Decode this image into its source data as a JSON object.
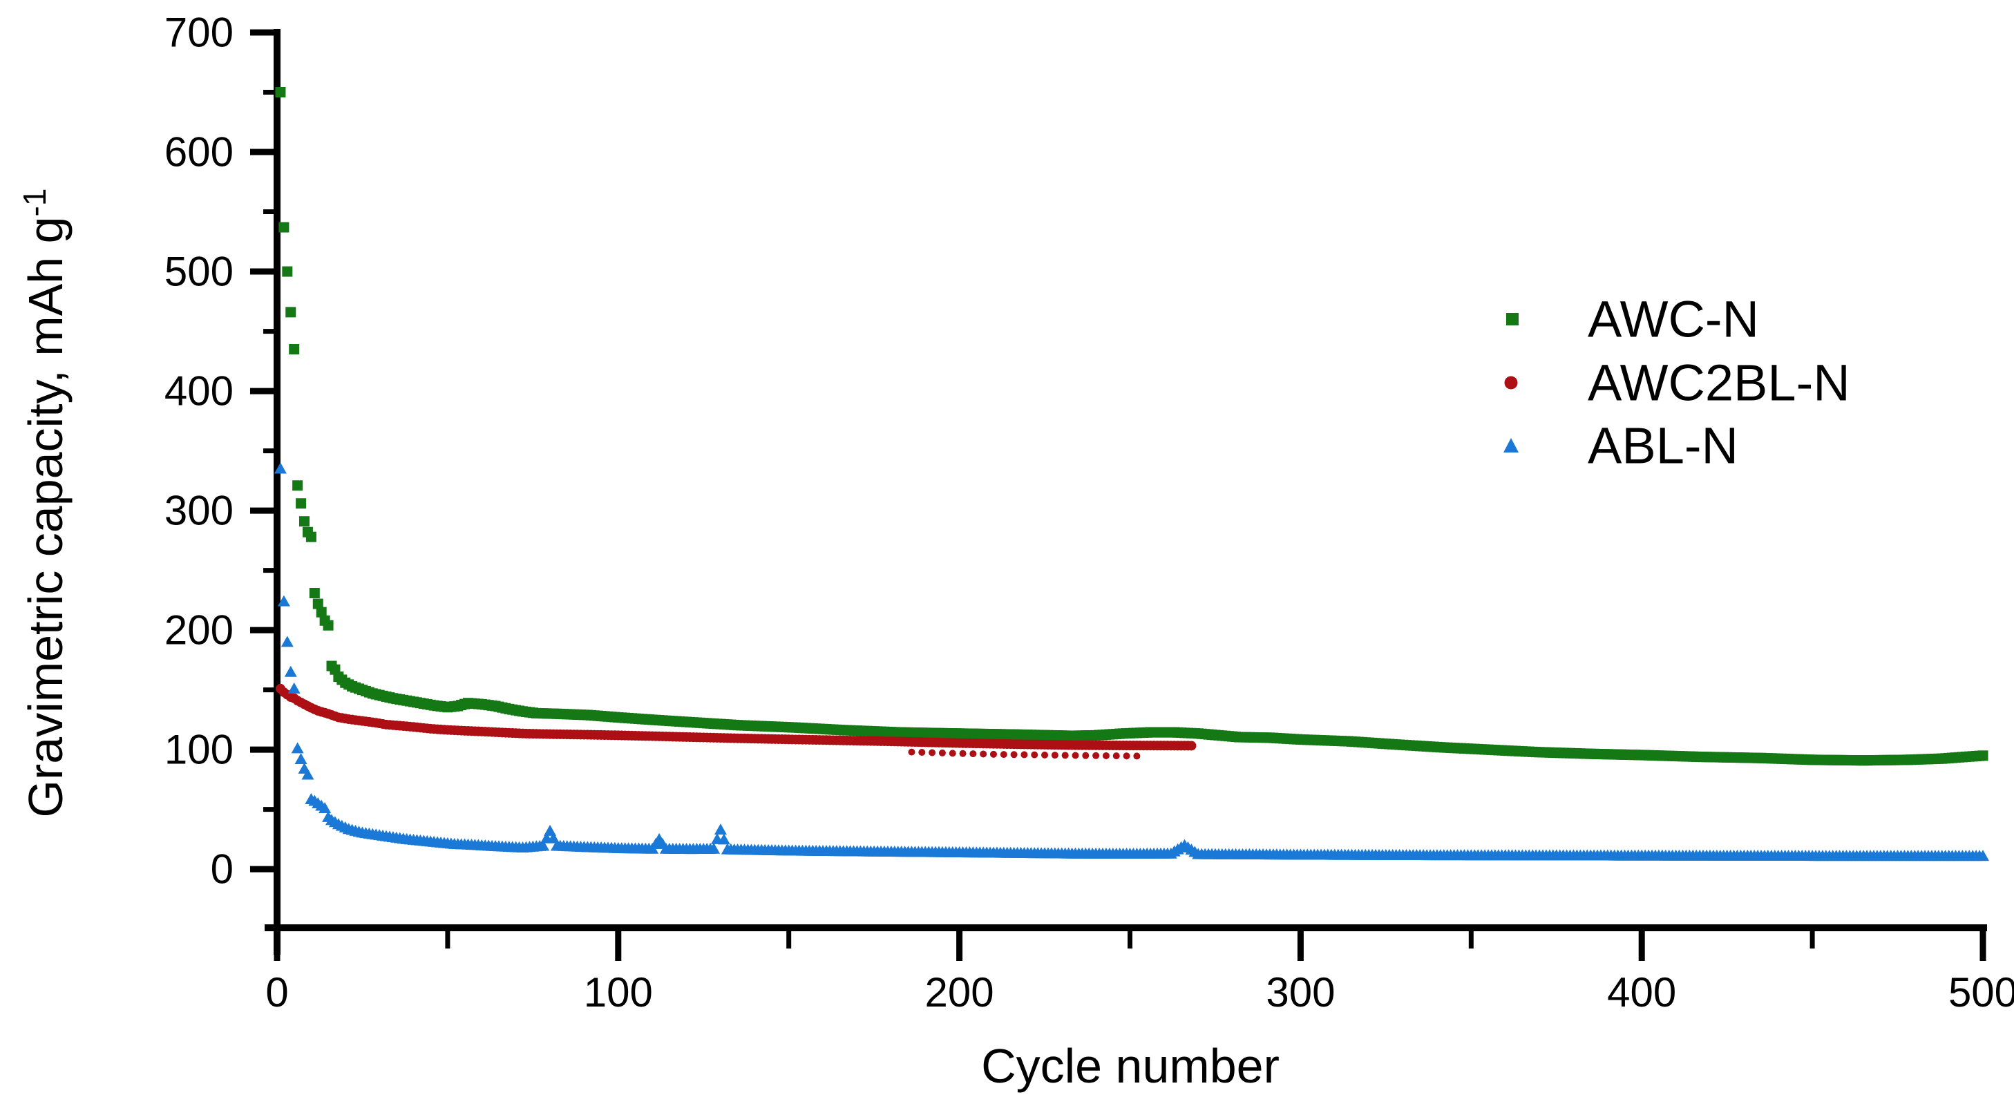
{
  "figure": {
    "background": "#ffffff",
    "axis_color": "#000000"
  },
  "chart_data": {
    "type": "scatter",
    "title": "",
    "xlabel": "Cycle number",
    "ylabel": "Gravimetric capacity, mAh g⁻¹",
    "ylabel_main": "Gravimetric capacity, mAh g",
    "ylabel_superscript": "-1",
    "xlim": [
      0,
      500
    ],
    "ylim": [
      -50,
      700
    ],
    "x_ticks_major": [
      0,
      100,
      200,
      300,
      400,
      500
    ],
    "x_ticks_minor": [
      50,
      150,
      250,
      350,
      450
    ],
    "y_ticks_major": [
      0,
      100,
      200,
      300,
      400,
      500,
      600,
      700
    ],
    "y_ticks_minor": [
      50,
      150,
      250,
      350,
      450,
      550,
      650
    ],
    "grid": false,
    "legend_position": "upper-right",
    "series": [
      {
        "name": "AWC-N",
        "marker": "square",
        "color": "#147814",
        "points": [
          [
            1,
            650
          ],
          [
            2,
            537
          ],
          [
            3,
            500
          ],
          [
            4,
            466
          ],
          [
            5,
            435
          ],
          [
            6,
            321
          ],
          [
            7,
            306
          ],
          [
            8,
            291
          ],
          [
            9,
            282
          ],
          [
            10,
            278
          ],
          [
            11,
            231
          ],
          [
            12,
            222
          ],
          [
            13,
            215
          ],
          [
            14,
            208
          ],
          [
            15,
            204
          ],
          [
            16,
            170
          ],
          [
            17,
            167
          ],
          [
            18,
            161
          ],
          [
            20,
            156
          ],
          [
            22,
            153
          ],
          [
            25,
            150
          ],
          [
            28,
            147
          ],
          [
            31,
            145
          ],
          [
            34,
            143
          ],
          [
            38,
            141
          ],
          [
            42,
            139
          ],
          [
            46,
            137
          ],
          [
            50,
            135.5
          ],
          [
            53,
            136.5
          ],
          [
            56,
            139
          ],
          [
            60,
            138
          ],
          [
            64,
            136.5
          ],
          [
            68,
            134
          ],
          [
            72,
            132
          ],
          [
            76,
            130.5
          ],
          [
            82,
            130
          ],
          [
            91,
            129
          ],
          [
            100,
            127
          ],
          [
            110,
            125
          ],
          [
            121,
            123
          ],
          [
            135,
            120.5
          ],
          [
            152,
            118.5
          ],
          [
            165,
            116.5
          ],
          [
            182,
            114.5
          ],
          [
            200,
            113.5
          ],
          [
            216,
            112.7
          ],
          [
            233,
            111.6
          ],
          [
            240,
            112
          ],
          [
            248,
            113.5
          ],
          [
            256,
            114.5
          ],
          [
            263,
            114.5
          ],
          [
            270,
            113.5
          ],
          [
            276,
            112
          ],
          [
            282,
            110.5
          ],
          [
            291,
            110
          ],
          [
            300,
            108.5
          ],
          [
            314,
            107
          ],
          [
            327,
            104.5
          ],
          [
            341,
            102
          ],
          [
            355,
            100
          ],
          [
            369,
            98
          ],
          [
            385,
            96.5
          ],
          [
            400,
            95.5
          ],
          [
            417,
            94
          ],
          [
            435,
            93
          ],
          [
            450,
            91.5
          ],
          [
            465,
            91
          ],
          [
            478,
            91.5
          ],
          [
            488,
            92.5
          ],
          [
            495,
            94
          ],
          [
            500,
            95
          ]
        ]
      },
      {
        "name": "AWC2BL-N",
        "marker": "circle",
        "color": "#ac0f14",
        "points": [
          [
            1,
            151
          ],
          [
            2,
            148
          ],
          [
            3,
            146
          ],
          [
            4,
            144
          ],
          [
            5,
            143
          ],
          [
            6,
            141
          ],
          [
            7,
            139.5
          ],
          [
            8,
            138
          ],
          [
            10,
            135
          ],
          [
            12,
            132.5
          ],
          [
            15,
            130
          ],
          [
            18,
            127
          ],
          [
            21,
            125.5
          ],
          [
            25,
            124
          ],
          [
            29,
            122.5
          ],
          [
            32,
            121
          ],
          [
            36,
            120
          ],
          [
            40,
            119
          ],
          [
            45,
            117.5
          ],
          [
            50,
            116.5
          ],
          [
            55,
            115.8
          ],
          [
            60,
            115.2
          ],
          [
            65,
            114.5
          ],
          [
            72,
            113.5
          ],
          [
            80,
            113
          ],
          [
            91,
            112.5
          ],
          [
            100,
            112
          ],
          [
            110,
            111.3
          ],
          [
            121,
            110.5
          ],
          [
            135,
            109.5
          ],
          [
            152,
            108.5
          ],
          [
            165,
            107.8
          ],
          [
            182,
            106.8
          ],
          [
            200,
            105.5
          ],
          [
            216,
            104.6
          ],
          [
            233,
            103.8
          ],
          [
            248,
            103.5
          ],
          [
            260,
            103.4
          ],
          [
            268,
            103.3
          ]
        ],
        "lower_branch_points": [
          [
            186,
            98
          ],
          [
            192,
            97.5
          ],
          [
            198,
            97
          ],
          [
            205,
            96.5
          ],
          [
            212,
            96
          ],
          [
            219,
            95.8
          ],
          [
            226,
            95.5
          ],
          [
            233,
            95.2
          ],
          [
            240,
            95
          ],
          [
            247,
            94.8
          ],
          [
            254,
            94.6
          ]
        ]
      },
      {
        "name": "ABL-N",
        "marker": "triangle",
        "color": "#1a79d6",
        "points": [
          [
            1,
            335
          ],
          [
            2,
            224
          ],
          [
            3,
            190
          ],
          [
            4,
            165
          ],
          [
            5,
            151
          ],
          [
            6,
            101
          ],
          [
            7,
            92
          ],
          [
            8,
            84
          ],
          [
            9,
            79
          ],
          [
            10,
            58.5
          ],
          [
            11,
            57
          ],
          [
            12,
            55
          ],
          [
            13,
            53
          ],
          [
            14,
            51
          ],
          [
            15,
            43.5
          ],
          [
            16,
            41
          ],
          [
            18,
            37.5
          ],
          [
            21,
            33.5
          ],
          [
            25,
            30.5
          ],
          [
            32,
            27.5
          ],
          [
            38,
            25
          ],
          [
            45,
            23
          ],
          [
            52,
            21
          ],
          [
            58,
            20.2
          ],
          [
            65,
            19
          ],
          [
            72,
            18
          ],
          [
            78,
            19.5
          ],
          [
            80,
            32
          ],
          [
            82,
            19.5
          ],
          [
            90,
            18.5
          ],
          [
            100,
            17.5
          ],
          [
            110,
            17
          ],
          [
            112,
            25
          ],
          [
            114,
            17
          ],
          [
            122,
            16.8
          ],
          [
            128,
            17
          ],
          [
            130,
            33
          ],
          [
            132,
            16.5
          ],
          [
            140,
            16
          ],
          [
            150,
            15.5
          ],
          [
            165,
            15
          ],
          [
            182,
            14.5
          ],
          [
            200,
            14
          ],
          [
            216,
            13.5
          ],
          [
            233,
            13
          ],
          [
            250,
            12.8
          ],
          [
            262,
            13
          ],
          [
            266,
            20
          ],
          [
            270,
            12.5
          ],
          [
            285,
            12.3
          ],
          [
            300,
            12
          ],
          [
            320,
            11.8
          ],
          [
            340,
            11.6
          ],
          [
            360,
            11.5
          ],
          [
            380,
            11.4
          ],
          [
            400,
            11.3
          ],
          [
            420,
            11.2
          ],
          [
            440,
            11.1
          ],
          [
            460,
            11
          ],
          [
            480,
            11
          ],
          [
            500,
            11
          ]
        ]
      }
    ]
  }
}
